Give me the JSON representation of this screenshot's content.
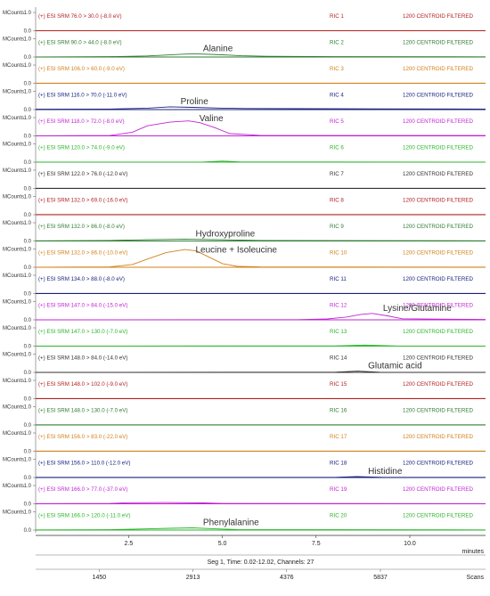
{
  "chart_data": {
    "type": "line",
    "x_unit_label": "minutes",
    "xlim": [
      0.02,
      12.02
    ],
    "ylim": [
      0,
      1.0
    ],
    "x_ticks": [
      "2.5",
      "5.0",
      "7.5",
      "10.0"
    ],
    "x_tick_values": [
      2.5,
      5.0,
      7.5,
      10.0
    ],
    "y_tick_labels": [
      "1.0",
      "0.0"
    ],
    "y_axis_label": "MCounts",
    "segment_info": "Seg 1, Time: 0.02-12.02, Channels: 27",
    "scan_ticks": [
      "1450",
      "2913",
      "4376",
      "5837"
    ],
    "scan_label": "Scans",
    "filter_text": "1200 CENTROID FILTERED",
    "panels": [
      {
        "method": "(+) ESI SRM 76.0 > 30.0 (-8.0 eV)",
        "ric": "RIC 1",
        "color": "#b22222",
        "annotation": "",
        "x": [
          0.02,
          12.02
        ],
        "y": [
          0.0,
          0.0
        ]
      },
      {
        "method": "(+) ESI SRM 90.0 > 44.0 (-8.0 eV)",
        "ric": "RIC 2",
        "color": "#2e7d32",
        "annotation": "Alanine",
        "x": [
          0.02,
          2.0,
          3.0,
          4.2,
          5.0,
          5.5,
          6.2,
          8.0,
          12.02
        ],
        "y": [
          0.0,
          0.02,
          0.06,
          0.18,
          0.12,
          0.07,
          0.04,
          0.02,
          0.01
        ]
      },
      {
        "method": "(+) ESI SRM 106.0 > 60.0 (-9.0 eV)",
        "ric": "RIC 3",
        "color": "#d2811a",
        "annotation": "",
        "x": [
          0.02,
          12.02
        ],
        "y": [
          0.01,
          0.01
        ]
      },
      {
        "method": "(+) ESI SRM 116.0 > 70.0 (-11.0 eV)",
        "ric": "RIC 4",
        "color": "#1a237e",
        "annotation": "Proline",
        "x": [
          0.02,
          2.0,
          3.0,
          3.6,
          4.2,
          5.0,
          5.6,
          7.0,
          9.0,
          12.02
        ],
        "y": [
          0.02,
          0.03,
          0.08,
          0.15,
          0.12,
          0.08,
          0.06,
          0.05,
          0.04,
          0.03
        ]
      },
      {
        "method": "(+) ESI SRM 118.0 > 72.0 (-8.0 eV)",
        "ric": "RIC 5",
        "color": "#c026d3",
        "annotation": "Valine",
        "x": [
          0.02,
          2.0,
          2.6,
          3.0,
          3.6,
          4.1,
          4.4,
          4.8,
          5.2,
          6.0,
          9.0,
          12.02
        ],
        "y": [
          0.0,
          0.02,
          0.2,
          0.55,
          0.75,
          0.82,
          0.72,
          0.45,
          0.12,
          0.03,
          0.02,
          0.02
        ]
      },
      {
        "method": "(+) ESI SRM 120.0 > 74.0 (-9.0 eV)",
        "ric": "RIC 6",
        "color": "#2bb52b",
        "annotation": "",
        "x": [
          0.02,
          4.5,
          5.0,
          5.5,
          12.02
        ],
        "y": [
          0.0,
          0.01,
          0.06,
          0.01,
          0.0
        ]
      },
      {
        "method": "(+) ESI SRM 122.0 > 76.0 (-12.0 eV)",
        "ric": "RIC 7",
        "color": "#333333",
        "annotation": "",
        "x": [
          0.02,
          12.02
        ],
        "y": [
          0.01,
          0.01
        ]
      },
      {
        "method": "(+) ESI SRM 132.0 > 69.0 (-16.0 eV)",
        "ric": "RIC 8",
        "color": "#b22222",
        "annotation": "",
        "x": [
          0.02,
          12.02
        ],
        "y": [
          0.01,
          0.01
        ]
      },
      {
        "method": "(+) ESI SRM 132.0 > 86.0 (-8.0 eV)",
        "ric": "RIC 9",
        "color": "#2e7d32",
        "annotation": "Hydroxyproline",
        "x": [
          0.02,
          2.0,
          3.0,
          4.0,
          5.0,
          6.0,
          12.02
        ],
        "y": [
          0.01,
          0.03,
          0.07,
          0.1,
          0.07,
          0.03,
          0.01
        ]
      },
      {
        "method": "(+) ESI SRM 132.0 > 86.0 (-10.0 eV)",
        "ric": "RIC 10",
        "color": "#d2811a",
        "annotation": "Leucine + Isoleucine",
        "x": [
          0.02,
          2.0,
          2.6,
          3.0,
          3.5,
          4.0,
          4.3,
          4.6,
          5.0,
          5.4,
          6.0,
          12.02
        ],
        "y": [
          0.0,
          0.02,
          0.15,
          0.45,
          0.8,
          0.97,
          0.9,
          0.6,
          0.2,
          0.05,
          0.02,
          0.01
        ]
      },
      {
        "method": "(+) ESI SRM 134.0 > 88.0 (-8.0 eV)",
        "ric": "RIC 11",
        "color": "#1a237e",
        "annotation": "",
        "x": [
          0.02,
          12.02
        ],
        "y": [
          0.01,
          0.01
        ]
      },
      {
        "method": "(+) ESI SRM 147.0 > 84.0 (-15.0 eV)",
        "ric": "RIC 12",
        "color": "#c026d3",
        "annotation": "Lysine/Glutamine",
        "x": [
          0.02,
          7.0,
          7.8,
          8.3,
          8.7,
          9.0,
          9.4,
          9.8,
          12.02
        ],
        "y": [
          0.0,
          0.01,
          0.05,
          0.15,
          0.3,
          0.35,
          0.22,
          0.06,
          0.02
        ]
      },
      {
        "method": "(+) ESI SRM 147.0 > 130.0 (-7.0 eV)",
        "ric": "RIC 13",
        "color": "#2bb52b",
        "annotation": "",
        "x": [
          0.02,
          8.0,
          8.8,
          9.6,
          12.02
        ],
        "y": [
          0.0,
          0.01,
          0.06,
          0.01,
          0.0
        ]
      },
      {
        "method": "(+) ESI SRM 148.0 > 84.0 (-14.0 eV)",
        "ric": "RIC 14",
        "color": "#333333",
        "annotation": "Glutamic acid",
        "x": [
          0.02,
          8.0,
          8.6,
          9.2,
          12.02
        ],
        "y": [
          0.0,
          0.01,
          0.07,
          0.01,
          0.0
        ]
      },
      {
        "method": "(+) ESI SRM 148.0 > 102.0 (-9.0 eV)",
        "ric": "RIC 15",
        "color": "#b22222",
        "annotation": "",
        "x": [
          0.02,
          12.02
        ],
        "y": [
          0.01,
          0.01
        ]
      },
      {
        "method": "(+) ESI SRM 148.0 > 130.0 (-7.0 eV)",
        "ric": "RIC 16",
        "color": "#2e7d32",
        "annotation": "",
        "x": [
          0.02,
          12.02
        ],
        "y": [
          0.01,
          0.01
        ]
      },
      {
        "method": "(+) ESI SRM 156.0 > 83.0 (-22.0 eV)",
        "ric": "RIC 17",
        "color": "#d2811a",
        "annotation": "",
        "x": [
          0.02,
          12.02
        ],
        "y": [
          0.01,
          0.01
        ]
      },
      {
        "method": "(+) ESI SRM 156.0 > 110.0 (-12.0 eV)",
        "ric": "RIC 18",
        "color": "#1a237e",
        "annotation": "Histidine",
        "x": [
          0.02,
          8.0,
          8.6,
          9.3,
          12.02
        ],
        "y": [
          0.01,
          0.01,
          0.05,
          0.01,
          0.01
        ]
      },
      {
        "method": "(+) ESI SRM 166.0 > 77.0 (-37.0 eV)",
        "ric": "RIC 19",
        "color": "#c026d3",
        "annotation": "",
        "x": [
          0.02,
          2.0,
          2.5,
          3.5,
          4.5,
          5.0,
          12.02
        ],
        "y": [
          0.01,
          0.02,
          0.06,
          0.07,
          0.05,
          0.02,
          0.01
        ]
      },
      {
        "method": "(+) ESI SRM 166.0 > 120.0 (-11.0 eV)",
        "ric": "RIC 20",
        "color": "#2bb52b",
        "annotation": "Phenylalanine",
        "x": [
          0.02,
          2.0,
          2.8,
          3.6,
          4.2,
          4.8,
          5.4,
          12.02
        ],
        "y": [
          0.01,
          0.02,
          0.06,
          0.1,
          0.12,
          0.07,
          0.03,
          0.01
        ]
      }
    ]
  }
}
